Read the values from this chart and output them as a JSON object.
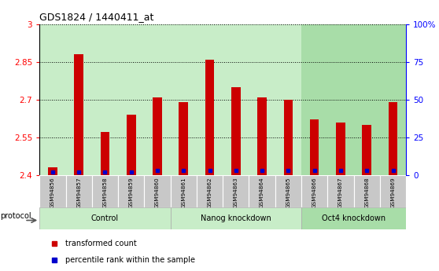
{
  "title": "GDS1824 / 1440411_at",
  "samples": [
    "GSM94856",
    "GSM94857",
    "GSM94858",
    "GSM94859",
    "GSM94860",
    "GSM94861",
    "GSM94862",
    "GSM94863",
    "GSM94864",
    "GSM94865",
    "GSM94866",
    "GSM94867",
    "GSM94868",
    "GSM94869"
  ],
  "red_values": [
    2.43,
    2.88,
    2.57,
    2.64,
    2.71,
    2.69,
    2.86,
    2.75,
    2.71,
    2.7,
    2.62,
    2.61,
    2.6,
    2.69
  ],
  "blue_percentile": [
    2,
    2,
    2,
    2,
    3,
    3,
    3,
    3,
    3,
    3,
    3,
    3,
    3,
    3
  ],
  "groups": [
    {
      "label": "Control",
      "start": 0,
      "end": 5,
      "color": "#c8edc8"
    },
    {
      "label": "Nanog knockdown",
      "start": 5,
      "end": 10,
      "color": "#c8edc8"
    },
    {
      "label": "Oct4 knockdown",
      "start": 10,
      "end": 14,
      "color": "#a8dda8"
    }
  ],
  "ylim_left": [
    2.4,
    3.0
  ],
  "ylim_right": [
    0,
    100
  ],
  "yticks_left": [
    2.4,
    2.55,
    2.7,
    2.85,
    3.0
  ],
  "ytick_labels_left": [
    "2.4",
    "2.55",
    "2.7",
    "2.85",
    "3"
  ],
  "yticks_right": [
    0,
    25,
    50,
    75,
    100
  ],
  "ytick_labels_right": [
    "0",
    "25",
    "50",
    "75",
    "100%"
  ],
  "bar_color": "#cc0000",
  "dot_color": "#0000cc",
  "legend_items": [
    "transformed count",
    "percentile rank within the sample"
  ],
  "legend_colors": [
    "#cc0000",
    "#0000cc"
  ],
  "sample_bg": "#c8c8c8",
  "protocol_label": "protocol",
  "bar_width": 0.35
}
